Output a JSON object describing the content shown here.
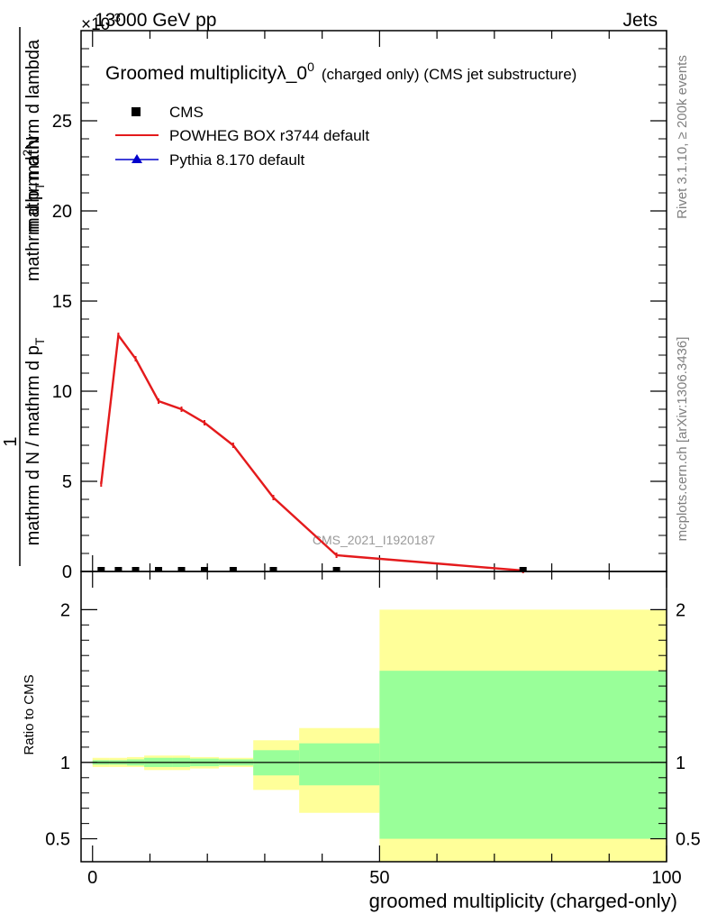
{
  "header": {
    "beam": "13000 GeV pp",
    "process": "Jets",
    "exponent_label": "×10",
    "exponent_power": "-3"
  },
  "side_labels": {
    "rivet": "Rivet 3.1.10, ≥ 200k events",
    "mcplots": "mcplots.cern.ch [arXiv:1306.3436]"
  },
  "colors": {
    "powheg": "#e41a1c",
    "pythia": "#0000cc",
    "band_outer": "#ffff99",
    "band_inner": "#99ff99",
    "watermark": "#9a9a9a"
  },
  "chart_data": [
    {
      "type": "line",
      "title": "Groomed multiplicityλ_0",
      "title_sup": "0",
      "title_suffix": "(charged only) (CMS jet substructure)",
      "ylabel": {
        "prefix": "1",
        "denominator": "mathrm d N / mathrm d p",
        "denominator_sub": "T",
        "numerator": "mathrm d",
        "numerator_sup": "2",
        "numerator_end": "N",
        "tail": "mathrm d p",
        "tail_sub": "T",
        "tail_end": "mathrm d lambda"
      },
      "watermark": "CMS_2021_I1920187",
      "xlim": [
        -2,
        100
      ],
      "ylim": [
        0,
        30
      ],
      "yticks": [
        0,
        5,
        10,
        15,
        20,
        25
      ],
      "ytick_labels": [
        "0",
        "5",
        "10",
        "15",
        "20",
        "25"
      ],
      "legend": {
        "position": "top-left",
        "entries": [
          "CMS",
          "POWHEG BOX r3744 default",
          "Pythia 8.170 default"
        ]
      },
      "series": [
        {
          "name": "POWHEG BOX r3744 default",
          "x": [
            1.5,
            4.5,
            7.5,
            11.5,
            15.5,
            19.5,
            24.5,
            31.5,
            42.5,
            75
          ],
          "y": [
            4.85,
            13.1,
            11.8,
            9.45,
            9.0,
            8.25,
            7.0,
            4.1,
            0.9,
            0.05
          ]
        },
        {
          "name": "CMS",
          "x": [
            1.5,
            4.5,
            7.5,
            11.5,
            15.5,
            19.5,
            24.5,
            31.5,
            42.5,
            75
          ],
          "y": [
            0,
            0,
            0,
            0,
            0,
            0,
            0,
            0,
            0,
            0
          ]
        }
      ]
    },
    {
      "type": "area",
      "ylabel": "Ratio to CMS",
      "xlabel": "groomed multiplicity (charged-only)",
      "xlim": [
        -2,
        100
      ],
      "ylim": [
        0.35,
        2.25
      ],
      "xticks": [
        0,
        50,
        100
      ],
      "xtick_labels": [
        "0",
        "50",
        "100"
      ],
      "yticks": [
        0.5,
        1,
        2
      ],
      "ytick_labels": [
        "0.5",
        "1",
        "2"
      ],
      "reference_line": 1,
      "bins": [
        {
          "lo": 0,
          "hi": 3,
          "inner": [
            0.985,
            1.015
          ],
          "outer": [
            0.97,
            1.03
          ]
        },
        {
          "lo": 3,
          "hi": 6,
          "inner": [
            0.985,
            1.015
          ],
          "outer": [
            0.97,
            1.03
          ]
        },
        {
          "lo": 6,
          "hi": 9,
          "inner": [
            0.98,
            1.02
          ],
          "outer": [
            0.97,
            1.035
          ]
        },
        {
          "lo": 9,
          "hi": 14,
          "inner": [
            0.97,
            1.03
          ],
          "outer": [
            0.95,
            1.045
          ]
        },
        {
          "lo": 14,
          "hi": 17,
          "inner": [
            0.97,
            1.03
          ],
          "outer": [
            0.95,
            1.045
          ]
        },
        {
          "lo": 17,
          "hi": 22,
          "inner": [
            0.975,
            1.025
          ],
          "outer": [
            0.96,
            1.035
          ]
        },
        {
          "lo": 22,
          "hi": 28,
          "inner": [
            0.98,
            1.02
          ],
          "outer": [
            0.97,
            1.03
          ]
        },
        {
          "lo": 28,
          "hi": 36,
          "inner": [
            0.915,
            1.08
          ],
          "outer": [
            0.82,
            1.145
          ]
        },
        {
          "lo": 36,
          "hi": 50,
          "inner": [
            0.85,
            1.125
          ],
          "outer": [
            0.67,
            1.225
          ]
        },
        {
          "lo": 50,
          "hi": 100,
          "inner": [
            0.5,
            1.6
          ],
          "outer": [
            0.35,
            2.0
          ]
        }
      ]
    }
  ]
}
